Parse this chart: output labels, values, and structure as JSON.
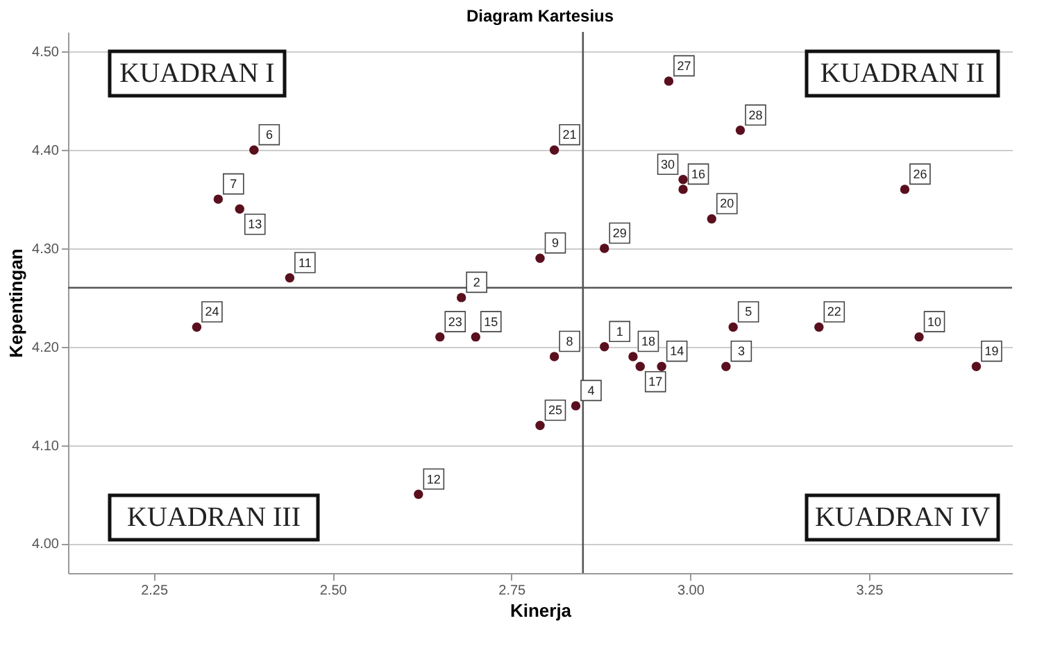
{
  "chart_data": {
    "type": "scatter",
    "title": "Diagram Kartesius",
    "xlabel": "Kinerja",
    "ylabel": "Kepentingan",
    "annotations": [
      "KUADRAN I",
      "KUADRAN II",
      "KUADRAN III",
      "KUADRAN IV",
      {
        "text": "1",
        "x": 2.88,
        "y": 4.2
      },
      {
        "text": "2",
        "x": 2.68,
        "y": 4.25
      },
      {
        "text": "3",
        "x": 3.05,
        "y": 4.18
      },
      {
        "text": "4",
        "x": 2.84,
        "y": 4.14
      },
      {
        "text": "5",
        "x": 3.06,
        "y": 4.22
      },
      {
        "text": "6",
        "x": 2.39,
        "y": 4.4
      },
      {
        "text": "7",
        "x": 2.34,
        "y": 4.35
      },
      {
        "text": "8",
        "x": 2.81,
        "y": 4.19
      },
      {
        "text": "9",
        "x": 2.79,
        "y": 4.29
      },
      {
        "text": "10",
        "x": 3.32,
        "y": 4.21
      },
      {
        "text": "11",
        "x": 2.44,
        "y": 4.27
      },
      {
        "text": "12",
        "x": 2.62,
        "y": 4.05
      },
      {
        "text": "13",
        "x": 2.37,
        "y": 4.34
      },
      {
        "text": "14",
        "x": 2.96,
        "y": 4.18
      },
      {
        "text": "15",
        "x": 2.7,
        "y": 4.21
      },
      {
        "text": "16",
        "x": 2.99,
        "y": 4.36
      },
      {
        "text": "17",
        "x": 2.93,
        "y": 4.18
      },
      {
        "text": "18",
        "x": 2.92,
        "y": 4.19
      },
      {
        "text": "19",
        "x": 3.4,
        "y": 4.18
      },
      {
        "text": "20",
        "x": 3.03,
        "y": 4.33
      },
      {
        "text": "21",
        "x": 2.81,
        "y": 4.4
      },
      {
        "text": "22",
        "x": 3.18,
        "y": 4.22
      },
      {
        "text": "23",
        "x": 2.65,
        "y": 4.21
      },
      {
        "text": "24",
        "x": 2.31,
        "y": 4.22
      },
      {
        "text": "25",
        "x": 2.79,
        "y": 4.12
      },
      {
        "text": "26",
        "x": 3.3,
        "y": 4.36
      },
      {
        "text": "27",
        "x": 2.97,
        "y": 4.47
      },
      {
        "text": "28",
        "x": 3.07,
        "y": 4.42
      },
      {
        "text": "29",
        "x": 2.88,
        "y": 4.3
      },
      {
        "text": "30",
        "x": 2.99,
        "y": 4.37
      }
    ],
    "x": [
      2.88,
      2.68,
      3.05,
      2.84,
      3.06,
      2.39,
      2.34,
      2.81,
      2.79,
      3.32,
      2.44,
      2.62,
      2.37,
      2.96,
      2.7,
      2.99,
      2.93,
      2.92,
      3.4,
      3.03,
      2.81,
      3.18,
      2.65,
      2.31,
      2.79,
      3.3,
      2.97,
      3.07,
      2.88,
      2.99
    ],
    "values": [
      4.2,
      4.25,
      4.18,
      4.14,
      4.22,
      4.4,
      4.35,
      4.19,
      4.29,
      4.21,
      4.27,
      4.05,
      4.34,
      4.18,
      4.21,
      4.36,
      4.18,
      4.19,
      4.18,
      4.33,
      4.4,
      4.22,
      4.21,
      4.22,
      4.12,
      4.36,
      4.47,
      4.42,
      4.3,
      4.37
    ],
    "color": "#5a0f1e",
    "marker": "circle",
    "xlim": [
      2.13,
      3.45
    ],
    "xticks": [
      2.25,
      {
        "value": 2.5,
        "label": "2.50"
      },
      2.75,
      {
        "value": 3,
        "label": "3.00"
      },
      3.25
    ],
    "ylim": [
      3.97,
      4.52
    ],
    "yticks": [
      {
        "value": 4,
        "label": "4.00"
      },
      {
        "value": 4.1,
        "label": "4.10"
      },
      {
        "value": 4.2,
        "label": "4.20"
      },
      {
        "value": 4.3,
        "label": "4.30"
      },
      {
        "value": 4.4,
        "label": "4.40"
      },
      {
        "value": 4.5,
        "label": "4.50"
      }
    ],
    "grid": "y",
    "ref_lines": [
      {
        "axis": "x",
        "value": 2.85
      },
      {
        "axis": "y",
        "value": 4.26
      }
    ]
  }
}
